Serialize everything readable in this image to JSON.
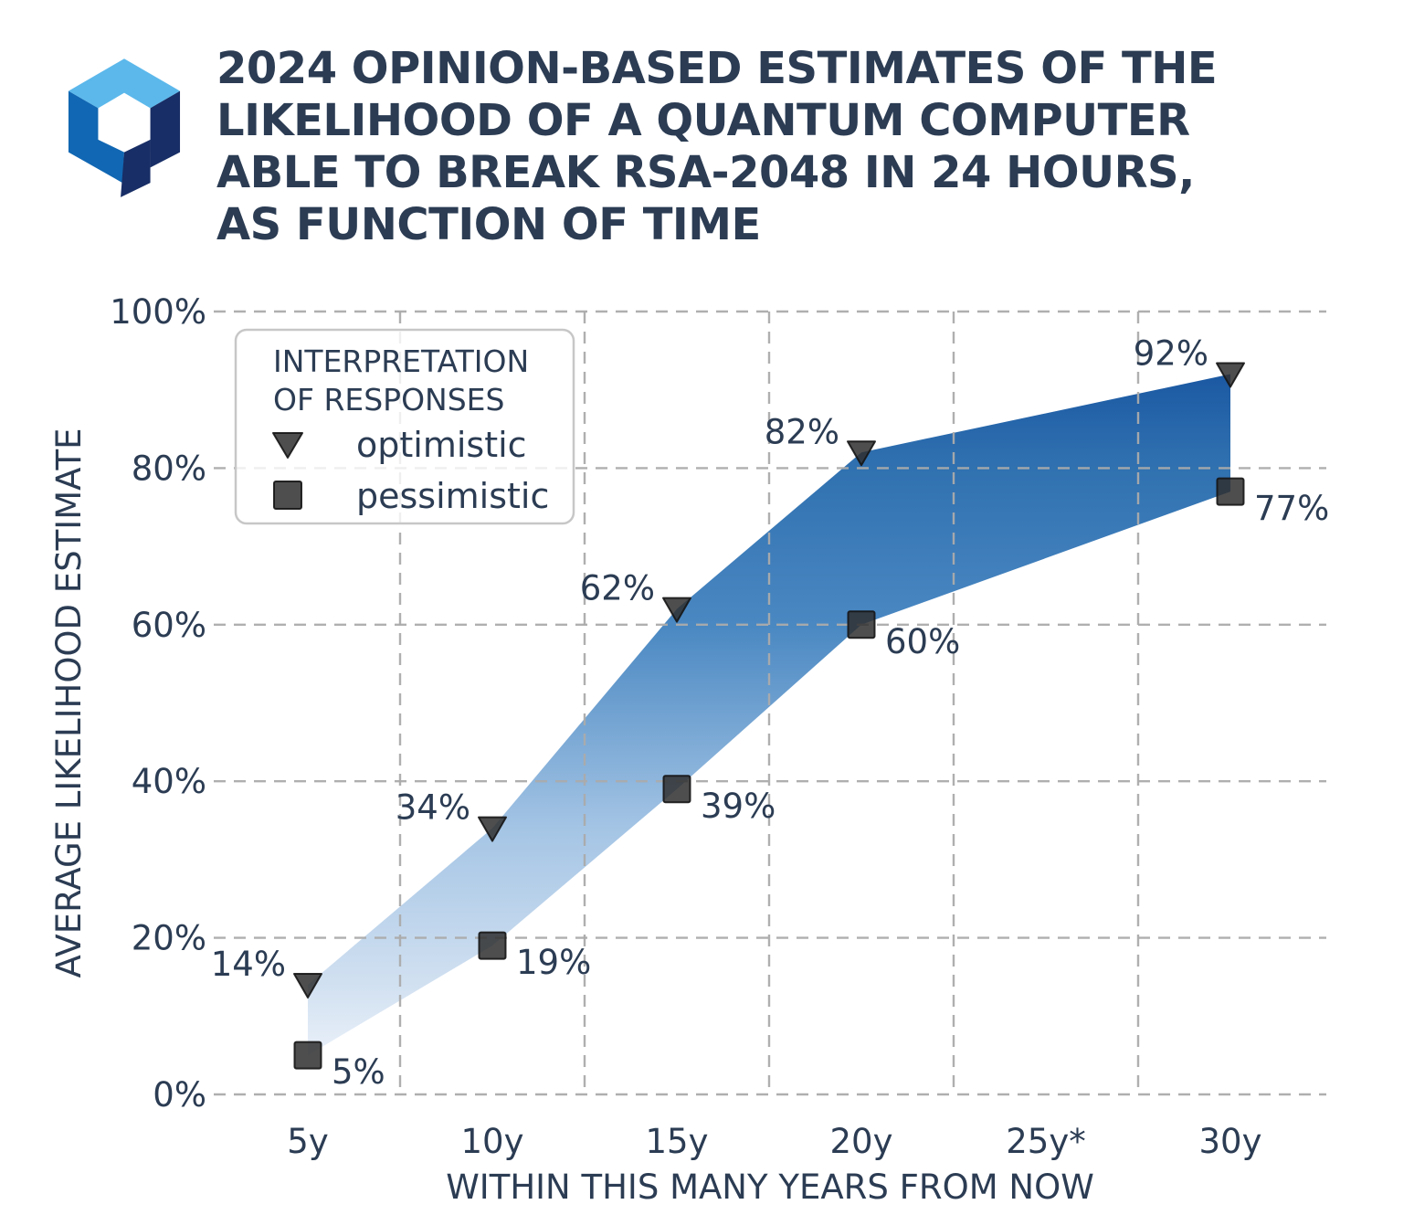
{
  "header": {
    "title": "2024 OPINION-BASED ESTIMATES OF THE\nLIKELIHOOD OF A QUANTUM COMPUTER\nABLE TO BREAK RSA-2048 IN 24 HOURS,\nAS FUNCTION OF TIME",
    "logo_icon": "hexagonal-cube-q-logo",
    "logo_colors": {
      "light": "#5CB8EB",
      "mid": "#1167B3",
      "dark": "#182E66"
    }
  },
  "chart_data": {
    "type": "area",
    "subtype": "range-band-between-series",
    "title": "2024 opinion-based estimates of the likelihood of a quantum computer able to break RSA-2048 in 24 hours, as function of time",
    "categories": [
      "5y",
      "10y",
      "15y",
      "20y",
      "25y*",
      "30y"
    ],
    "series": [
      {
        "name": "optimistic",
        "marker": "triangle-down",
        "values": [
          14,
          34,
          62,
          82,
          null,
          92
        ],
        "labels": [
          "14%",
          "34%",
          "62%",
          "82%",
          null,
          "92%"
        ]
      },
      {
        "name": "pessimistic",
        "marker": "square",
        "values": [
          5,
          19,
          39,
          60,
          null,
          77
        ],
        "labels": [
          "5%",
          "19%",
          "39%",
          "60%",
          null,
          "77%"
        ]
      }
    ],
    "xlabel": "WITHIN THIS MANY YEARS FROM NOW",
    "ylabel": "AVERAGE LIKELIHOOD ESTIMATE",
    "y_ticks": [
      0,
      20,
      40,
      60,
      80,
      100
    ],
    "y_tick_suffix": "%",
    "ylim": [
      0,
      100
    ],
    "grid": {
      "style": "dashed",
      "color": "#ABABAB",
      "horizontal": "at-ticks",
      "vertical": "between-ticks"
    },
    "legend": {
      "position": "upper-left",
      "title_lines": [
        "INTERPRETATION",
        "OF RESPONSES"
      ],
      "entries": [
        {
          "marker": "triangle-down",
          "label": "optimistic"
        },
        {
          "marker": "square",
          "label": "pessimistic"
        }
      ]
    },
    "band_gradient": [
      {
        "offset": 0.0,
        "color": "#1B58A2"
      },
      {
        "offset": 0.12,
        "color": "#2E6FAF"
      },
      {
        "offset": 0.37,
        "color": "#4A88C2"
      },
      {
        "offset": 0.67,
        "color": "#A5C5E5"
      },
      {
        "offset": 0.9,
        "color": "#D2E1F1"
      },
      {
        "offset": 1.0,
        "color": "#E9F0F9"
      }
    ],
    "marker_color": "#2F2F2F",
    "marker_edge_color": "#151515",
    "text_color": "#2B3C53",
    "legend_border_color": "#C7C7C7"
  }
}
